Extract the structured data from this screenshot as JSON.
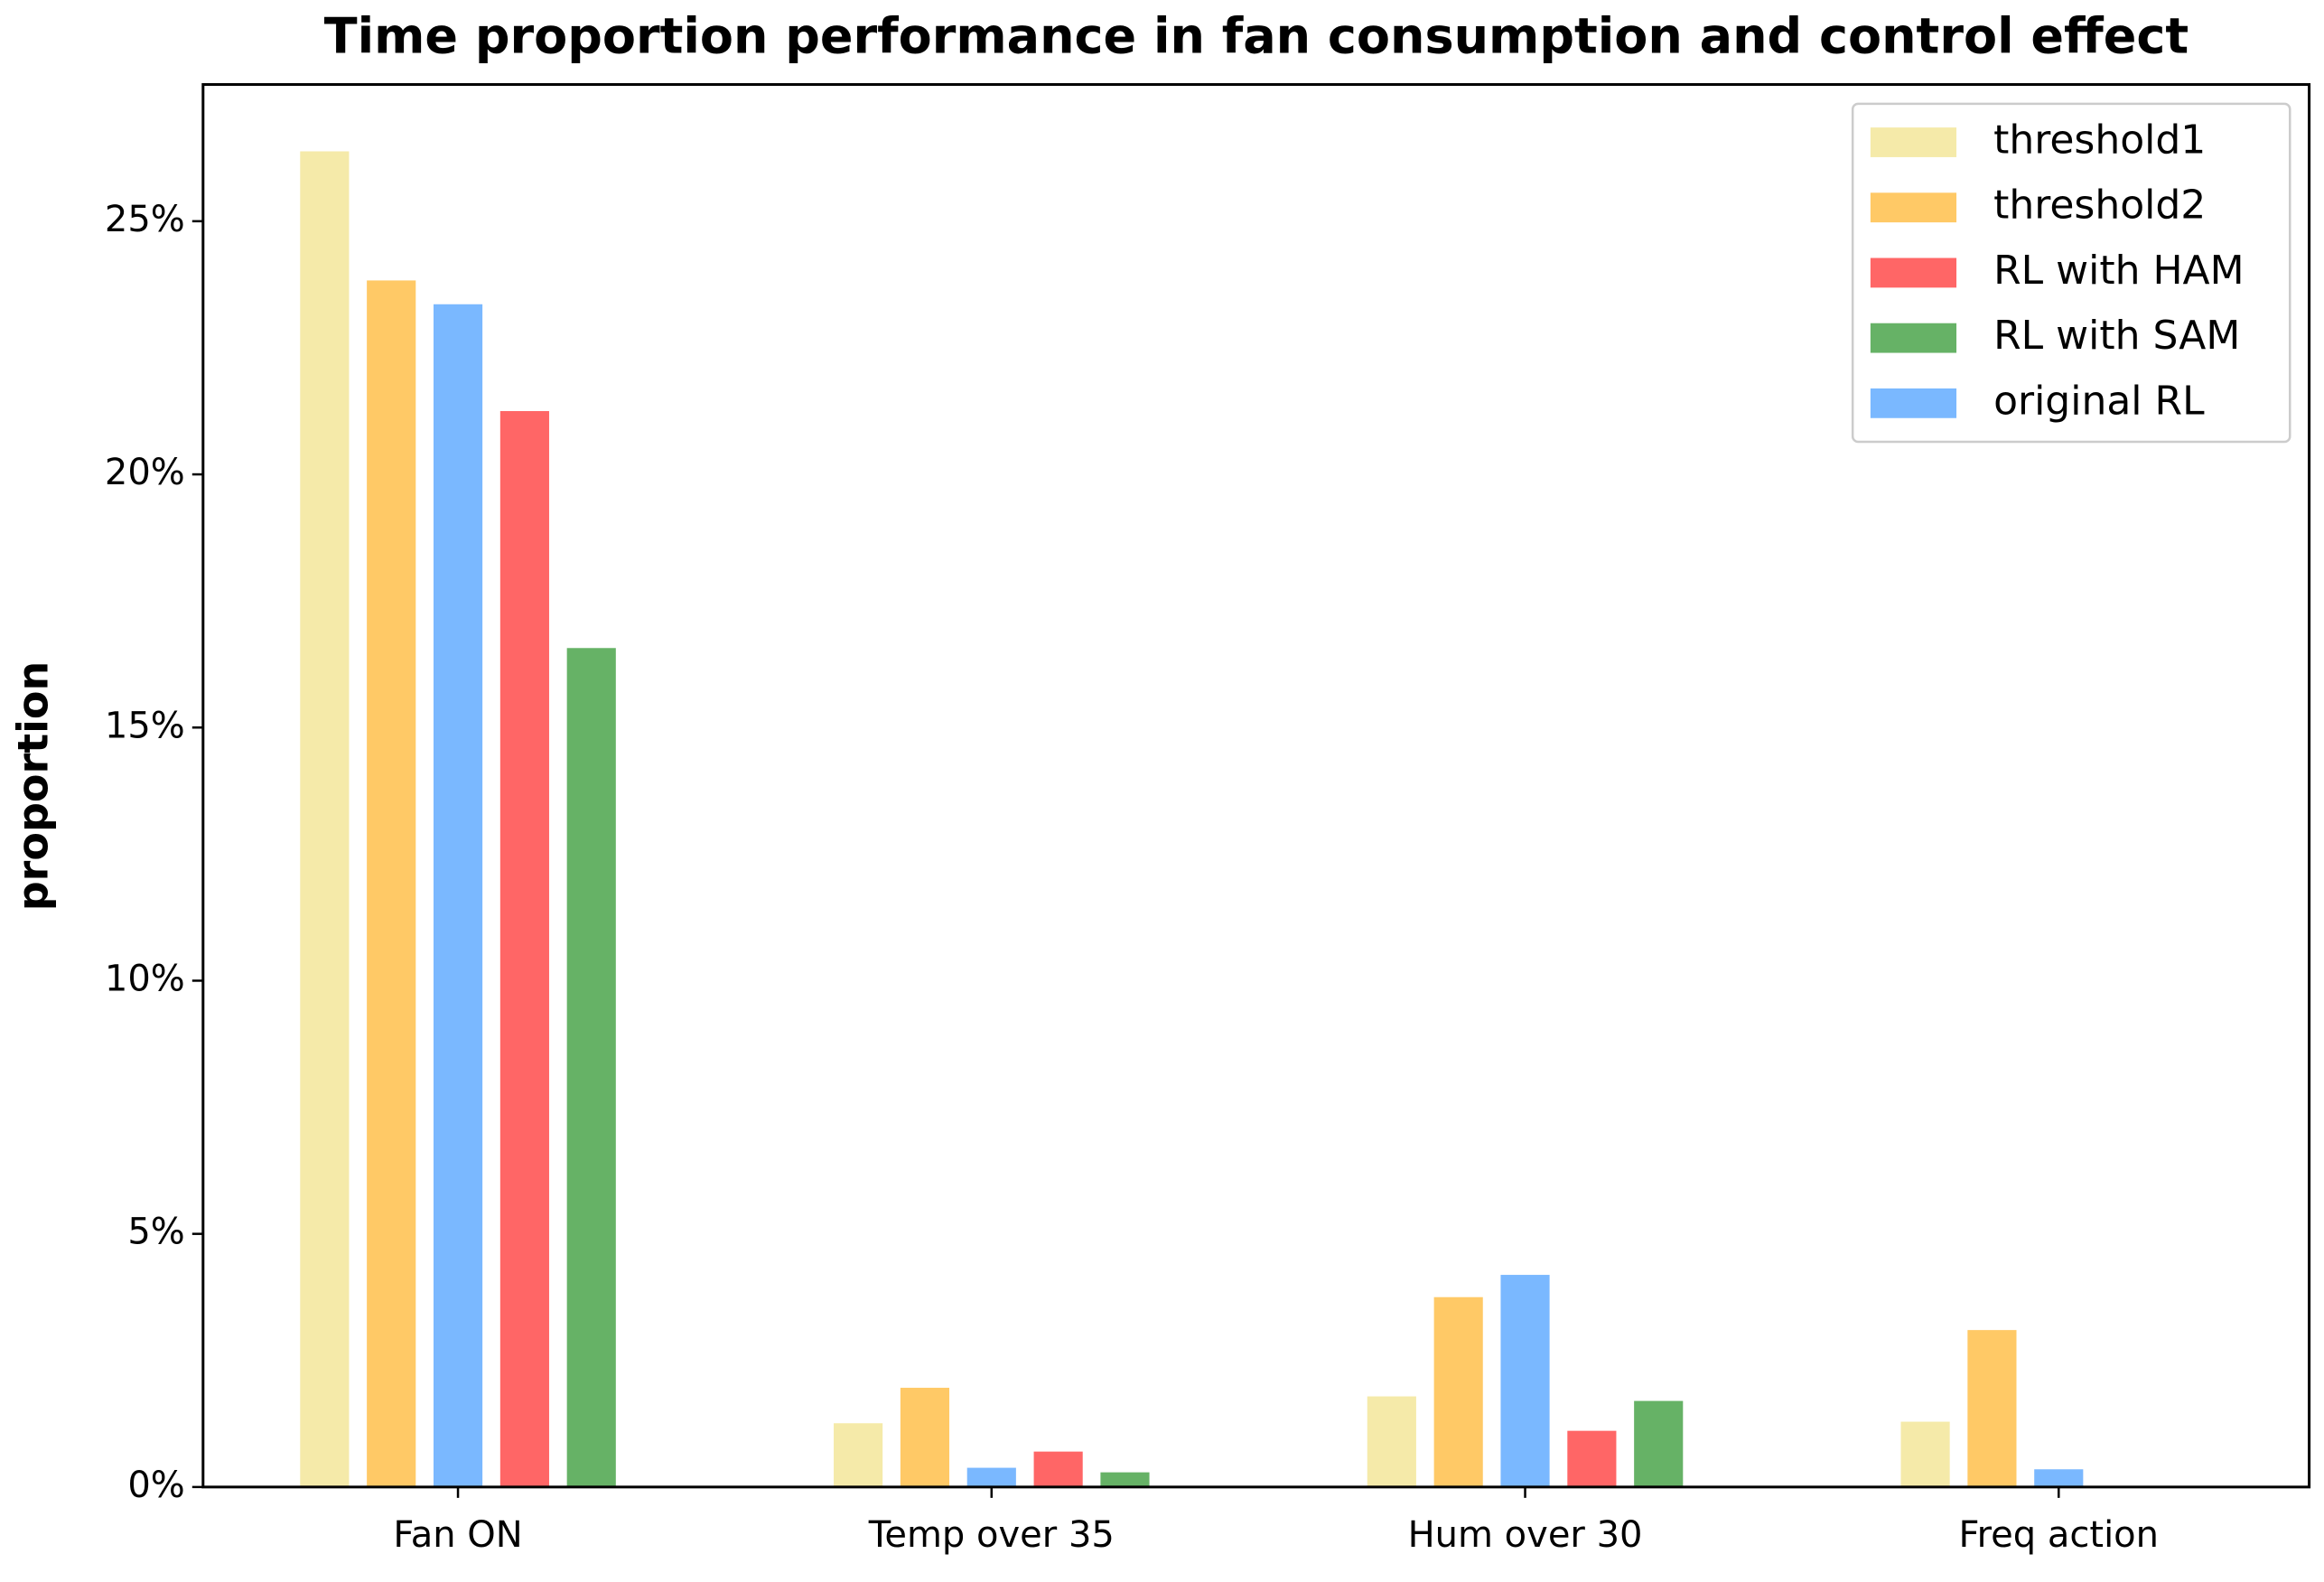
{
  "chart_data": {
    "type": "bar",
    "title": "Time proportion performance in fan consumption and control effect",
    "y_label": "proportion",
    "categories": [
      "Fan ON",
      "Temp over 35",
      "Hum over 30",
      "Freq action"
    ],
    "series": [
      {
        "name": "threshold1",
        "color": "#f5eaa9",
        "values": [
          26.38,
          1.26,
          1.79,
          1.29
        ]
      },
      {
        "name": "threshold2",
        "color": "#ffc966",
        "values": [
          23.83,
          1.96,
          3.75,
          3.1
        ]
      },
      {
        "name": "RL with HAM",
        "color": "#ff6666",
        "values": [
          21.25,
          0.7,
          1.11,
          0
        ]
      },
      {
        "name": "RL with SAM",
        "color": "#66b266",
        "values": [
          16.57,
          0.29,
          1.7,
          0
        ]
      },
      {
        "name": "original RL",
        "color": "#7ab8ff",
        "values": [
          23.36,
          0.38,
          4.19,
          0.35
        ]
      }
    ],
    "ylim": [
      0,
      27.7
    ],
    "yticks": [
      {
        "value": 0,
        "label": "0%"
      },
      {
        "value": 5,
        "label": "5%"
      },
      {
        "value": 10,
        "label": "10%"
      },
      {
        "value": 15,
        "label": "15%"
      },
      {
        "value": 20,
        "label": "20%"
      },
      {
        "value": 25,
        "label": "25%"
      }
    ],
    "legend": "upper right"
  }
}
